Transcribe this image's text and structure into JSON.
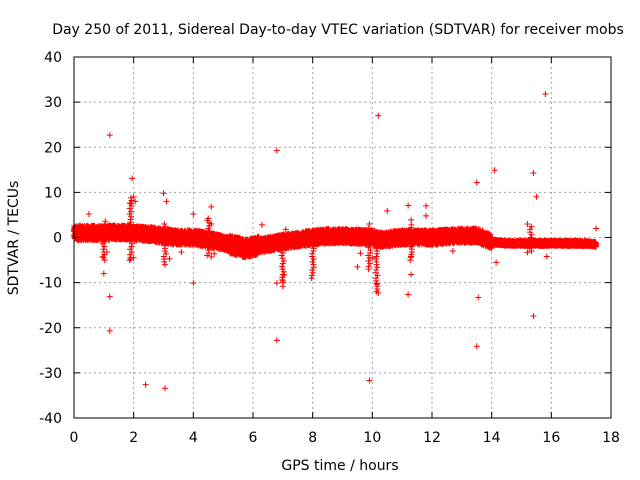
{
  "chart_data": {
    "type": "scatter",
    "title": "Day 250 of 2011, Sidereal Day-to-day VTEC variation (SDTVAR) for receiver mobs",
    "xlabel": "GPS time / hours",
    "ylabel": "SDTVAR / TECUs",
    "xlim": [
      0,
      18
    ],
    "ylim": [
      -40,
      40
    ],
    "xticks": [
      0,
      2,
      4,
      6,
      8,
      10,
      12,
      14,
      16,
      18
    ],
    "yticks": [
      -40,
      -30,
      -20,
      -10,
      0,
      10,
      20,
      30,
      40
    ],
    "grid": true,
    "marker": "+",
    "color": "#ff0000",
    "series": [
      {
        "name": "mobs",
        "baseline_trend": {
          "x": [
            0.0,
            0.5,
            1.0,
            1.5,
            2.0,
            2.5,
            3.0,
            3.5,
            4.0,
            4.5,
            5.0,
            5.5,
            5.8,
            6.0,
            6.5,
            7.0,
            7.5,
            8.0,
            8.5,
            9.0,
            9.5,
            10.0,
            10.3,
            10.6,
            11.0,
            11.5,
            12.0,
            12.5,
            13.0,
            13.5,
            14.0,
            14.5,
            15.0,
            15.5,
            16.0,
            16.5,
            17.0,
            17.5
          ],
          "y": [
            1.0,
            1.0,
            1.0,
            1.2,
            1.0,
            0.8,
            0.3,
            0.0,
            0.0,
            -0.5,
            -1.2,
            -2.0,
            -2.5,
            -2.0,
            -1.5,
            -1.0,
            -0.5,
            0.0,
            0.3,
            0.3,
            0.2,
            0.0,
            -0.5,
            -0.3,
            0.0,
            0.0,
            0.0,
            0.2,
            0.4,
            0.5,
            -1.0,
            -1.3,
            -1.3,
            -1.3,
            -1.3,
            -1.3,
            -1.3,
            -1.5
          ]
        },
        "outliers": [
          [
            1.2,
            22.7
          ],
          [
            6.8,
            19.3
          ],
          [
            10.2,
            27.0
          ],
          [
            15.8,
            31.8
          ],
          [
            14.1,
            14.9
          ],
          [
            15.4,
            14.3
          ],
          [
            13.5,
            12.2
          ],
          [
            15.5,
            9.0
          ],
          [
            1.95,
            13.1
          ],
          [
            3.0,
            9.8
          ],
          [
            3.1,
            8.0
          ],
          [
            2.0,
            9.0
          ],
          [
            2.05,
            8.0
          ],
          [
            1.9,
            7.5
          ],
          [
            0.5,
            5.2
          ],
          [
            1.05,
            3.6
          ],
          [
            4.0,
            5.2
          ],
          [
            4.6,
            6.8
          ],
          [
            4.5,
            4.2
          ],
          [
            4.6,
            3.0
          ],
          [
            6.3,
            2.8
          ],
          [
            7.1,
            1.8
          ],
          [
            10.5,
            5.9
          ],
          [
            11.2,
            7.1
          ],
          [
            11.3,
            3.9
          ],
          [
            11.8,
            7.0
          ],
          [
            11.8,
            4.8
          ],
          [
            9.9,
            3.0
          ],
          [
            9.8,
            1.0
          ],
          [
            15.2,
            3.0
          ],
          [
            17.5,
            2.0
          ],
          [
            12.6,
            1.0
          ],
          [
            13.1,
            1.0
          ],
          [
            1.0,
            -8.0
          ],
          [
            1.2,
            -13.1
          ],
          [
            1.2,
            -20.7
          ],
          [
            0.95,
            -4.3
          ],
          [
            1.1,
            -3.2
          ],
          [
            2.0,
            -4.5
          ],
          [
            1.9,
            -4.8
          ],
          [
            2.4,
            -32.6
          ],
          [
            3.05,
            -33.4
          ],
          [
            3.2,
            -4.7
          ],
          [
            3.6,
            -3.2
          ],
          [
            4.0,
            -10.1
          ],
          [
            4.6,
            -4.3
          ],
          [
            4.7,
            -3.6
          ],
          [
            6.8,
            -22.8
          ],
          [
            6.8,
            -10.1
          ],
          [
            7.0,
            -10.8
          ],
          [
            7.0,
            -9.6
          ],
          [
            7.05,
            -8.3
          ],
          [
            9.9,
            -31.7
          ],
          [
            10.2,
            -12.3
          ],
          [
            10.15,
            -10.4
          ],
          [
            10.0,
            -4.5
          ],
          [
            9.5,
            -6.5
          ],
          [
            9.6,
            -3.5
          ],
          [
            11.2,
            -12.6
          ],
          [
            11.3,
            -8.2
          ],
          [
            11.3,
            -4.2
          ],
          [
            13.55,
            -13.3
          ],
          [
            13.5,
            -24.1
          ],
          [
            14.15,
            -5.5
          ],
          [
            15.4,
            -17.4
          ],
          [
            15.85,
            -4.2
          ],
          [
            15.2,
            -3.3
          ],
          [
            12.7,
            -3.0
          ]
        ]
      }
    ]
  }
}
